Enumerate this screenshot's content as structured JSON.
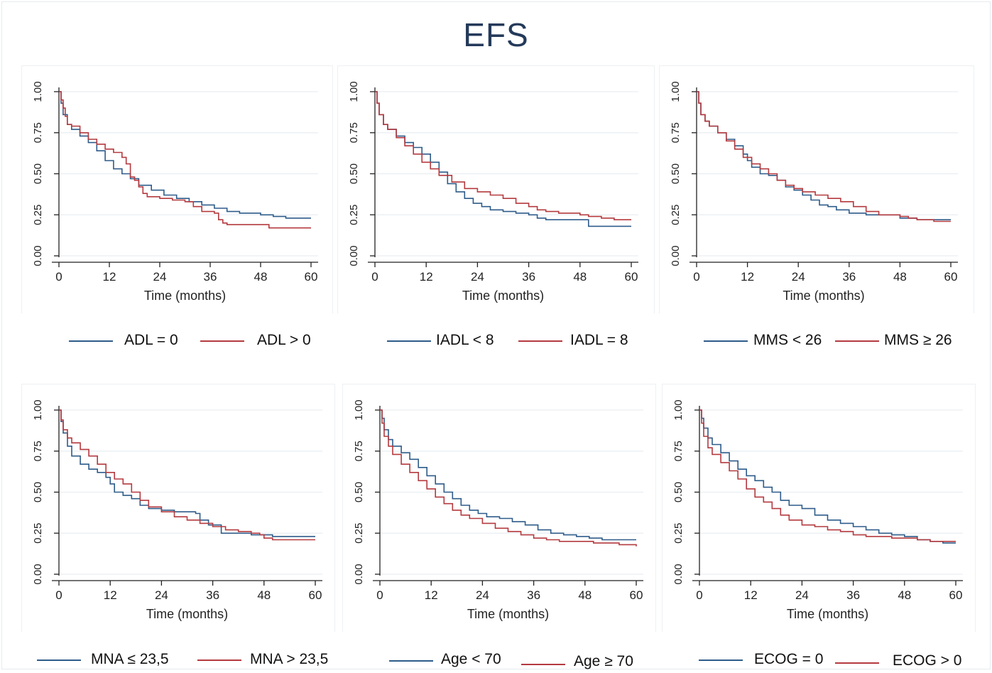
{
  "title": "EFS",
  "colors": {
    "blue": "#2e5c8a",
    "red": "#b43a3f",
    "grid": "#e9eef2",
    "axis": "#222222"
  },
  "chart_data": [
    {
      "type": "line",
      "xlabel": "Time (months)",
      "ylabel": "",
      "xlim": [
        0,
        60
      ],
      "ylim": [
        0,
        1
      ],
      "xticks": [
        "0",
        "12",
        "24",
        "36",
        "48",
        "60"
      ],
      "yticks": [
        "0.00",
        "0.25",
        "0.50",
        "0.75",
        "1.00"
      ],
      "grid": true,
      "legend": "bottom",
      "series": [
        {
          "name": "ADL = 0",
          "color": "#2e5c8a",
          "x": [
            0,
            0.5,
            1,
            2,
            3,
            5,
            7,
            9,
            11,
            13,
            15,
            17,
            19,
            22,
            25,
            28,
            31,
            34,
            37,
            40,
            43,
            46,
            48,
            51,
            54,
            57,
            60
          ],
          "y": [
            1,
            0.93,
            0.86,
            0.8,
            0.77,
            0.73,
            0.69,
            0.64,
            0.58,
            0.53,
            0.5,
            0.47,
            0.43,
            0.4,
            0.37,
            0.35,
            0.33,
            0.31,
            0.29,
            0.27,
            0.26,
            0.26,
            0.25,
            0.24,
            0.23,
            0.23,
            0.23
          ]
        },
        {
          "name": "ADL > 0",
          "color": "#b43a3f",
          "x": [
            0,
            0.5,
            1,
            1.5,
            2,
            3,
            5,
            7,
            9,
            11,
            13,
            15,
            16,
            17,
            18,
            19,
            20,
            21,
            24,
            27,
            30,
            32,
            34,
            37,
            38,
            39,
            40,
            48,
            50,
            60
          ],
          "y": [
            1,
            0.95,
            0.9,
            0.85,
            0.8,
            0.79,
            0.75,
            0.71,
            0.68,
            0.65,
            0.63,
            0.6,
            0.56,
            0.48,
            0.46,
            0.42,
            0.38,
            0.36,
            0.35,
            0.34,
            0.33,
            0.3,
            0.27,
            0.26,
            0.22,
            0.2,
            0.19,
            0.19,
            0.17,
            0.17
          ]
        }
      ]
    },
    {
      "type": "line",
      "xlabel": "Time (months)",
      "ylabel": "",
      "xlim": [
        0,
        60
      ],
      "ylim": [
        0,
        1
      ],
      "xticks": [
        "0",
        "12",
        "24",
        "36",
        "48",
        "60"
      ],
      "yticks": [
        "0.00",
        "0.25",
        "0.50",
        "0.75",
        "1.00"
      ],
      "grid": true,
      "legend": "bottom",
      "series": [
        {
          "name": "IADL < 8",
          "color": "#2e5c8a",
          "x": [
            0,
            0.5,
            1,
            2,
            3,
            5,
            7,
            9,
            11,
            13,
            15,
            17,
            19,
            21,
            23,
            25,
            27,
            30,
            33,
            36,
            38,
            40,
            43,
            46,
            48,
            50,
            60
          ],
          "y": [
            1,
            0.93,
            0.86,
            0.8,
            0.77,
            0.73,
            0.69,
            0.66,
            0.62,
            0.57,
            0.51,
            0.44,
            0.39,
            0.35,
            0.32,
            0.3,
            0.28,
            0.27,
            0.26,
            0.25,
            0.23,
            0.22,
            0.22,
            0.22,
            0.22,
            0.18,
            0.18
          ]
        },
        {
          "name": "IADL = 8",
          "color": "#b43a3f",
          "x": [
            0,
            0.5,
            1,
            2,
            3,
            5,
            7,
            9,
            11,
            13,
            15,
            18,
            21,
            24,
            27,
            30,
            33,
            36,
            38,
            40,
            43,
            46,
            48,
            50,
            53,
            56,
            60
          ],
          "y": [
            1,
            0.93,
            0.86,
            0.8,
            0.77,
            0.72,
            0.67,
            0.62,
            0.57,
            0.53,
            0.49,
            0.45,
            0.41,
            0.39,
            0.37,
            0.35,
            0.32,
            0.3,
            0.28,
            0.27,
            0.26,
            0.26,
            0.25,
            0.24,
            0.23,
            0.22,
            0.22
          ]
        }
      ]
    },
    {
      "type": "line",
      "xlabel": "Time (months)",
      "ylabel": "",
      "xlim": [
        0,
        60
      ],
      "ylim": [
        0,
        1
      ],
      "xticks": [
        "0",
        "12",
        "24",
        "36",
        "48",
        "60"
      ],
      "yticks": [
        "0.00",
        "0.25",
        "0.50",
        "0.75",
        "1.00"
      ],
      "grid": true,
      "legend": "bottom",
      "series": [
        {
          "name": "MMS < 26",
          "color": "#2e5c8a",
          "x": [
            0,
            0.5,
            1,
            2,
            3,
            5,
            7,
            9,
            11,
            12,
            13,
            15,
            17,
            19,
            21,
            23,
            25,
            27,
            29,
            31,
            33,
            36,
            40,
            44,
            46,
            48,
            52,
            60
          ],
          "y": [
            1,
            0.93,
            0.86,
            0.82,
            0.79,
            0.75,
            0.71,
            0.67,
            0.62,
            0.58,
            0.54,
            0.5,
            0.49,
            0.46,
            0.42,
            0.4,
            0.37,
            0.34,
            0.31,
            0.3,
            0.28,
            0.26,
            0.25,
            0.25,
            0.25,
            0.23,
            0.22,
            0.22
          ]
        },
        {
          "name": "MMS ≥ 26",
          "color": "#b43a3f",
          "x": [
            0,
            0.5,
            1,
            2,
            3,
            5,
            7,
            9,
            11,
            13,
            15,
            17,
            19,
            21,
            23,
            25,
            28,
            31,
            34,
            37,
            40,
            43,
            46,
            48,
            50,
            52,
            56,
            60
          ],
          "y": [
            1,
            0.93,
            0.86,
            0.82,
            0.79,
            0.75,
            0.7,
            0.65,
            0.6,
            0.56,
            0.53,
            0.5,
            0.46,
            0.43,
            0.41,
            0.39,
            0.37,
            0.35,
            0.33,
            0.3,
            0.27,
            0.25,
            0.25,
            0.24,
            0.23,
            0.22,
            0.21,
            0.21
          ]
        }
      ]
    },
    {
      "type": "line",
      "xlabel": "Time (months)",
      "ylabel": "",
      "xlim": [
        0,
        60
      ],
      "ylim": [
        0,
        1
      ],
      "xticks": [
        "0",
        "12",
        "24",
        "36",
        "48",
        "60"
      ],
      "yticks": [
        "0.00",
        "0.25",
        "0.50",
        "0.75",
        "1.00"
      ],
      "grid": true,
      "legend": "bottom",
      "series": [
        {
          "name": "MNA ≤ 23,5",
          "color": "#2e5c8a",
          "x": [
            0,
            0.5,
            1,
            2,
            3,
            5,
            7,
            9,
            11,
            12,
            13,
            15,
            17,
            19,
            21,
            24,
            27,
            30,
            32,
            33,
            35,
            38,
            40,
            42,
            45,
            48,
            50,
            60
          ],
          "y": [
            1,
            0.93,
            0.86,
            0.78,
            0.72,
            0.67,
            0.64,
            0.62,
            0.59,
            0.55,
            0.5,
            0.48,
            0.46,
            0.42,
            0.4,
            0.39,
            0.38,
            0.38,
            0.37,
            0.33,
            0.3,
            0.25,
            0.25,
            0.25,
            0.24,
            0.24,
            0.23,
            0.23
          ]
        },
        {
          "name": "MNA > 23,5",
          "color": "#b43a3f",
          "x": [
            0,
            0.5,
            1,
            2,
            3,
            5,
            7,
            9,
            11,
            13,
            15,
            17,
            19,
            21,
            24,
            27,
            30,
            33,
            36,
            39,
            42,
            45,
            47,
            48,
            50,
            54,
            60
          ],
          "y": [
            1,
            0.94,
            0.88,
            0.83,
            0.8,
            0.76,
            0.72,
            0.67,
            0.62,
            0.58,
            0.55,
            0.5,
            0.45,
            0.41,
            0.38,
            0.35,
            0.33,
            0.31,
            0.29,
            0.27,
            0.26,
            0.25,
            0.24,
            0.22,
            0.21,
            0.21,
            0.21
          ]
        }
      ]
    },
    {
      "type": "line",
      "xlabel": "Time (months)",
      "ylabel": "",
      "xlim": [
        0,
        60
      ],
      "ylim": [
        0,
        1
      ],
      "xticks": [
        "0",
        "12",
        "24",
        "36",
        "48",
        "60"
      ],
      "yticks": [
        "0.00",
        "0.25",
        "0.50",
        "0.75",
        "1.00"
      ],
      "grid": true,
      "legend": "bottom",
      "series": [
        {
          "name": "Age < 70",
          "color": "#2e5c8a",
          "x": [
            0,
            0.5,
            1,
            2,
            3,
            5,
            7,
            9,
            11,
            13,
            15,
            17,
            19,
            21,
            23,
            25,
            28,
            31,
            34,
            37,
            40,
            43,
            46,
            49,
            52,
            55,
            60
          ],
          "y": [
            1,
            0.95,
            0.88,
            0.82,
            0.78,
            0.74,
            0.7,
            0.65,
            0.6,
            0.55,
            0.5,
            0.46,
            0.42,
            0.39,
            0.37,
            0.35,
            0.34,
            0.32,
            0.3,
            0.27,
            0.25,
            0.24,
            0.23,
            0.22,
            0.21,
            0.21,
            0.21
          ]
        },
        {
          "name": "Age ≥ 70",
          "color": "#b43a3f",
          "x": [
            0,
            0.5,
            1,
            2,
            3,
            5,
            7,
            9,
            11,
            13,
            15,
            17,
            19,
            21,
            24,
            27,
            30,
            33,
            36,
            39,
            42,
            45,
            48,
            50,
            53,
            56,
            60
          ],
          "y": [
            1,
            0.92,
            0.84,
            0.78,
            0.73,
            0.67,
            0.62,
            0.57,
            0.52,
            0.47,
            0.43,
            0.39,
            0.36,
            0.34,
            0.31,
            0.28,
            0.26,
            0.24,
            0.22,
            0.21,
            0.2,
            0.2,
            0.2,
            0.19,
            0.19,
            0.18,
            0.17
          ]
        }
      ]
    },
    {
      "type": "line",
      "xlabel": "Time (months)",
      "ylabel": "",
      "xlim": [
        0,
        60
      ],
      "ylim": [
        0,
        1
      ],
      "xticks": [
        "0",
        "12",
        "24",
        "36",
        "48",
        "60"
      ],
      "yticks": [
        "0.00",
        "0.25",
        "0.50",
        "0.75",
        "1.00"
      ],
      "grid": true,
      "legend": "bottom",
      "series": [
        {
          "name": "ECOG = 0",
          "color": "#2e5c8a",
          "x": [
            0,
            0.5,
            1,
            2,
            3,
            5,
            7,
            9,
            11,
            13,
            15,
            17,
            19,
            21,
            24,
            27,
            30,
            33,
            36,
            39,
            42,
            45,
            48,
            51,
            54,
            57,
            60
          ],
          "y": [
            1,
            0.95,
            0.89,
            0.83,
            0.79,
            0.74,
            0.69,
            0.64,
            0.6,
            0.57,
            0.53,
            0.5,
            0.45,
            0.42,
            0.4,
            0.36,
            0.33,
            0.31,
            0.29,
            0.27,
            0.25,
            0.24,
            0.23,
            0.21,
            0.2,
            0.19,
            0.19
          ]
        },
        {
          "name": "ECOG > 0",
          "color": "#b43a3f",
          "x": [
            0,
            0.5,
            1,
            2,
            3,
            5,
            7,
            9,
            11,
            13,
            15,
            17,
            19,
            21,
            24,
            27,
            30,
            33,
            36,
            39,
            42,
            45,
            48,
            51,
            54,
            57,
            60
          ],
          "y": [
            1,
            0.92,
            0.84,
            0.77,
            0.73,
            0.68,
            0.63,
            0.58,
            0.52,
            0.47,
            0.44,
            0.4,
            0.36,
            0.33,
            0.3,
            0.29,
            0.27,
            0.26,
            0.24,
            0.23,
            0.23,
            0.22,
            0.22,
            0.21,
            0.2,
            0.2,
            0.2
          ]
        }
      ]
    }
  ]
}
